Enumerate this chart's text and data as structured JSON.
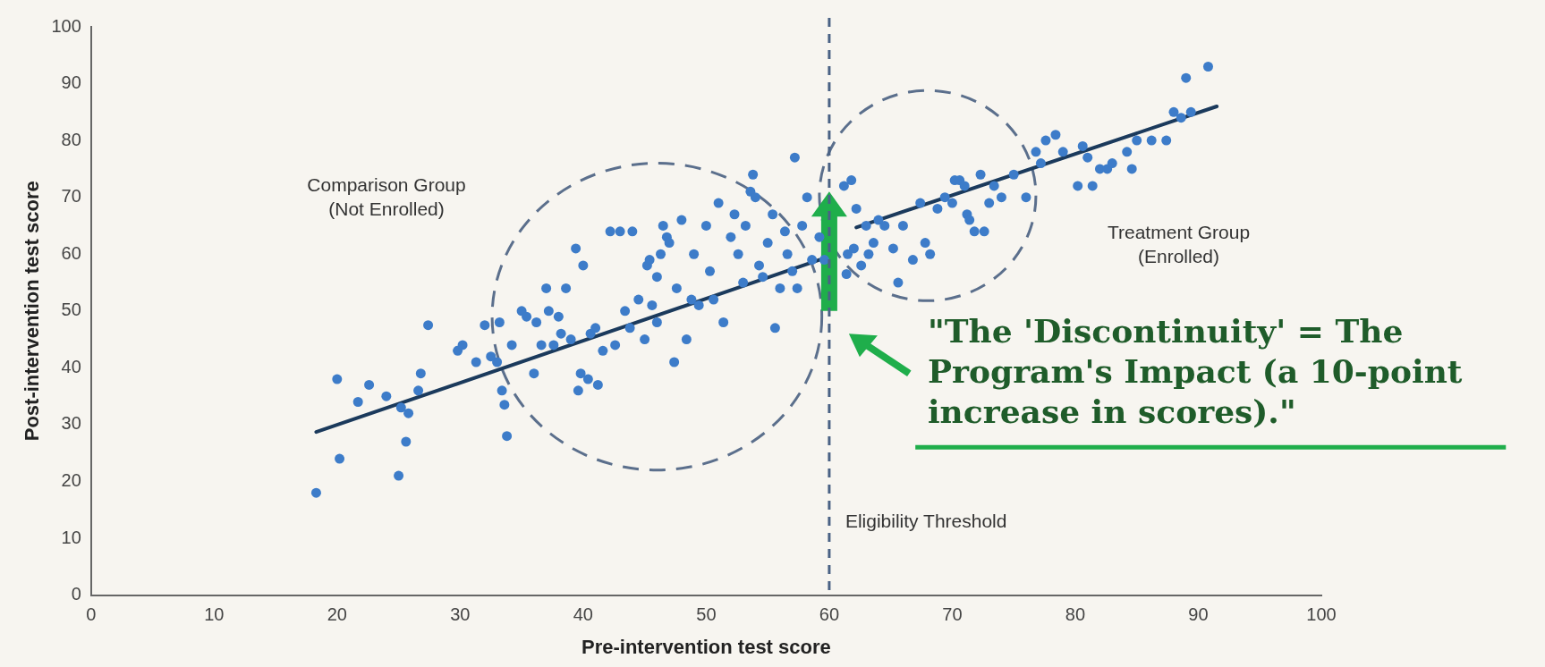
{
  "chart_data": {
    "type": "scatter",
    "xlabel": "Pre-intervention test score",
    "ylabel": "Post-intervention test score",
    "xlim": [
      0,
      100
    ],
    "xticks": [
      0,
      10,
      20,
      30,
      40,
      50,
      60,
      70,
      80,
      90,
      100
    ],
    "ylim": [
      0,
      100
    ],
    "yticks": [
      0,
      10,
      20,
      30,
      40,
      50,
      60,
      70,
      80,
      90,
      100
    ],
    "grid": false,
    "legend": false,
    "marker": "circle",
    "ref_lines": [
      {
        "axis": "x",
        "value": 60,
        "label": "Eligibility Threshold",
        "color": "#4a6285",
        "line_style": "dashed"
      }
    ],
    "annotations": [
      "Comparison Group\n(Not Enrolled)",
      "\"The 'Discontinuity' = The Program's Impact (a 10-point increase in scores).\"",
      "Treatment Group\n(Enrolled)"
    ],
    "series": [
      {
        "type": "scatter",
        "color": "#3d7cc9",
        "x": [
          18.3,
          20,
          20.2,
          21.7,
          22.6,
          24,
          25,
          25.2,
          25.6,
          25.8,
          26.6,
          26.8,
          27.4,
          29.8,
          30.2,
          31.3,
          32,
          32.5,
          33,
          33.2,
          33.4,
          33.6,
          33.8,
          34.2,
          35,
          35.4,
          36,
          36.2,
          36.6,
          37,
          37.2,
          37.6,
          38,
          38.2,
          38.6,
          39,
          39.4,
          39.6,
          39.8,
          40,
          40.4,
          40.6,
          41,
          41.2,
          41.6,
          42.2,
          42.6,
          43,
          43.4,
          43.8,
          44,
          44.5,
          45,
          45.2,
          45.4,
          45.6,
          46,
          46,
          46.3,
          46.5,
          46.8,
          47,
          47.4,
          47.6,
          48,
          48.4,
          48.8,
          49,
          49.4,
          50,
          50.3,
          50.6,
          51,
          51.4,
          52,
          52.3,
          52.6,
          53,
          53.2,
          53.6,
          53.8,
          54,
          54.3,
          54.6,
          55,
          55.4,
          55.6,
          56,
          56.4,
          56.6,
          57,
          57.2,
          57.4,
          57.8,
          58.2,
          58.6,
          59.2,
          59.6,
          61.2,
          61.8,
          61.5,
          61.4,
          62,
          62.2,
          62.6,
          63.2,
          63,
          63.6,
          64,
          64.5,
          65.2,
          65.6,
          66,
          66.8,
          67.4,
          67.8,
          68.2,
          68.8,
          69.4,
          70,
          70.2,
          70.6,
          71,
          71.2,
          71.4,
          71.8,
          72.3,
          72.6,
          73,
          73.4,
          74,
          75,
          76,
          76.8,
          77.2,
          77.6,
          78.4,
          79,
          80.2,
          80.6,
          81,
          81.4,
          82,
          82.6,
          83,
          84.2,
          84.6,
          85,
          86.2,
          87.4,
          88,
          88.6,
          89.4,
          89,
          90.8
        ],
        "values": [
          18,
          38,
          24,
          34,
          37,
          35,
          21,
          33,
          27,
          32,
          36,
          39,
          47.5,
          43,
          44,
          41,
          47.5,
          42,
          41,
          48,
          36,
          33.5,
          28,
          44,
          50,
          49,
          39,
          48,
          44,
          54,
          50,
          44,
          49,
          46,
          54,
          45,
          61,
          36,
          39,
          58,
          38,
          46,
          47,
          37,
          43,
          64,
          44,
          64,
          50,
          47,
          64,
          52,
          45,
          58,
          59,
          51,
          56,
          48,
          60,
          65,
          63,
          62,
          41,
          54,
          66,
          45,
          52,
          60,
          51,
          65,
          57,
          52,
          69,
          48,
          63,
          67,
          60,
          55,
          65,
          71,
          74,
          70,
          58,
          56,
          62,
          67,
          47,
          54,
          64,
          60,
          57,
          77,
          54,
          65,
          70,
          59,
          63,
          59,
          72,
          73,
          60,
          56.5,
          61,
          68,
          58,
          60,
          65,
          62,
          66,
          65,
          61,
          55,
          65,
          59,
          69,
          62,
          60,
          68,
          70,
          69,
          73,
          73,
          72,
          67,
          66,
          64,
          74,
          64,
          69,
          72,
          70,
          74,
          70,
          78,
          76,
          80,
          81,
          78,
          72,
          79,
          77,
          72,
          75,
          75,
          76,
          78,
          75,
          80,
          80,
          80,
          85,
          84,
          85,
          91,
          93
        ]
      },
      {
        "type": "line",
        "color": "#1b3a5c",
        "line_style": "solid",
        "marker": "none",
        "x": [
          18.3,
          59.2
        ],
        "values": [
          28.7,
          59
        ]
      },
      {
        "type": "line",
        "color": "#1b3a5c",
        "line_style": "solid",
        "marker": "none",
        "x": [
          62.2,
          91.5
        ],
        "values": [
          64.7,
          86
        ]
      }
    ]
  }
}
